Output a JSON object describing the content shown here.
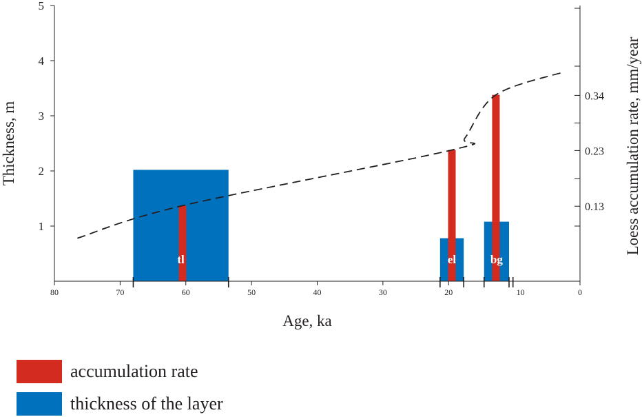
{
  "chart_data": {
    "type": "bar",
    "xlabel": "Age, ka",
    "ylabel": "Thickness, m",
    "y2label": "Loess accumulation rate, mm/year",
    "xlim": [
      80,
      0
    ],
    "ylim": [
      0,
      5
    ],
    "x_ticks": [
      "80",
      "70",
      "60",
      "50",
      "40",
      "30",
      "20",
      "10",
      "0"
    ],
    "y_ticks": [
      "1",
      "2",
      "3",
      "4",
      "5"
    ],
    "y2_ticks": [
      {
        "label": "0.13",
        "y": 1.36
      },
      {
        "label": "0.23",
        "y": 2.37
      },
      {
        "label": "0.34",
        "y": 3.37
      }
    ],
    "layers": [
      {
        "label": "tl",
        "x_start": 68,
        "x_end": 53.5,
        "thickness": 2.02,
        "rate_height": 1.37,
        "rate_x": 60.5
      },
      {
        "label": "el",
        "x_start": 21.3,
        "x_end": 17.7,
        "thickness": 0.78,
        "rate_height": 2.38,
        "rate_x": 19.5
      },
      {
        "label": "bg",
        "x_start": 14.6,
        "x_end": 10.8,
        "thickness": 1.08,
        "rate_height": 3.38,
        "rate_x": 12.8
      }
    ],
    "trend": {
      "x": [
        76.5,
        60.5,
        19.5,
        17.5,
        12.8,
        2.3
      ],
      "y": [
        0.78,
        1.37,
        2.38,
        2.6,
        3.38,
        3.8
      ]
    },
    "bracket_ticks": [
      68,
      53.5,
      21.3,
      17.7,
      14.6,
      10.8,
      10.2
    ],
    "series": [
      {
        "name": "accumulation rate",
        "color": "#d42b20"
      },
      {
        "name": "thickness of the layer",
        "color": "#0071bc"
      }
    ],
    "grid": false
  }
}
